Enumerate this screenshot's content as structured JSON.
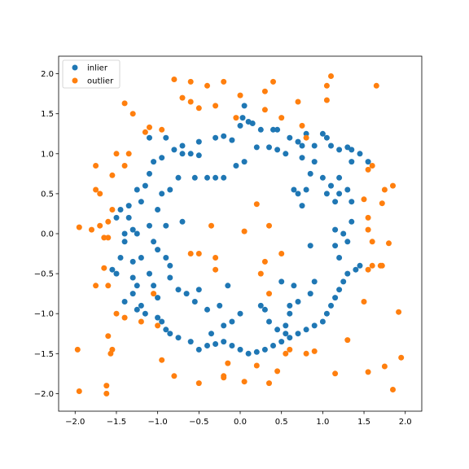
{
  "chart_data": {
    "type": "scatter",
    "title": "",
    "xlabel": "",
    "ylabel": "",
    "xlim": [
      -2.2,
      2.2
    ],
    "ylim": [
      -2.22,
      2.22
    ],
    "xticks": [
      -2.0,
      -1.5,
      -1.0,
      -0.5,
      0.0,
      0.5,
      1.0,
      1.5,
      2.0
    ],
    "yticks": [
      -2.0,
      -1.5,
      -1.0,
      -0.5,
      0.0,
      0.5,
      1.0,
      1.5,
      2.0
    ],
    "xtick_labels": [
      "−2.0",
      "−1.5",
      "−1.0",
      "−0.5",
      "0.0",
      "0.5",
      "1.0",
      "1.5",
      "2.0"
    ],
    "ytick_labels": [
      "−2.0",
      "−1.5",
      "−1.0",
      "−0.5",
      "0.0",
      "0.5",
      "1.0",
      "1.5",
      "2.0"
    ],
    "grid": false,
    "legend_position": "top-left",
    "series": [
      {
        "name": "inlier",
        "color": "#1f77b4",
        "points": [
          [
            -1.1,
            1.2
          ],
          [
            -0.9,
            1.2
          ],
          [
            -0.7,
            1.1
          ],
          [
            -0.5,
            1.15
          ],
          [
            -0.3,
            1.2
          ],
          [
            -0.2,
            1.22
          ],
          [
            -0.1,
            1.17
          ],
          [
            0.0,
            1.35
          ],
          [
            0.03,
            1.45
          ],
          [
            0.05,
            1.6
          ],
          [
            0.1,
            1.4
          ],
          [
            0.15,
            1.38
          ],
          [
            0.25,
            1.3
          ],
          [
            0.4,
            1.3
          ],
          [
            0.45,
            1.3
          ],
          [
            0.6,
            1.2
          ],
          [
            0.7,
            1.15
          ],
          [
            0.75,
            1.1
          ],
          [
            0.8,
            1.25
          ],
          [
            0.9,
            1.1
          ],
          [
            1.0,
            1.25
          ],
          [
            1.05,
            1.2
          ],
          [
            1.1,
            1.1
          ],
          [
            1.2,
            1.05
          ],
          [
            1.3,
            1.08
          ],
          [
            1.35,
            1.05
          ],
          [
            1.45,
            1.0
          ],
          [
            1.55,
            0.9
          ],
          [
            1.35,
            0.9
          ],
          [
            1.2,
            0.7
          ],
          [
            1.3,
            0.55
          ],
          [
            1.35,
            0.4
          ],
          [
            1.1,
            0.6
          ],
          [
            1.15,
            0.4
          ],
          [
            1.2,
            0.5
          ],
          [
            1.05,
            0.5
          ],
          [
            1.0,
            0.7
          ],
          [
            0.9,
            0.9
          ],
          [
            0.85,
            0.75
          ],
          [
            0.8,
            0.55
          ],
          [
            0.65,
            0.55
          ],
          [
            0.7,
            0.5
          ],
          [
            0.75,
            0.35
          ],
          [
            0.75,
            0.95
          ],
          [
            0.55,
            1.0
          ],
          [
            0.45,
            1.05
          ],
          [
            0.35,
            1.08
          ],
          [
            0.2,
            1.08
          ],
          [
            -0.5,
            0.98
          ],
          [
            -0.6,
            1.0
          ],
          [
            -0.7,
            1.0
          ],
          [
            -0.8,
            1.05
          ],
          [
            -0.95,
            0.95
          ],
          [
            -1.05,
            0.9
          ],
          [
            -1.1,
            0.75
          ],
          [
            -1.15,
            0.6
          ],
          [
            -1.25,
            0.55
          ],
          [
            -1.2,
            0.4
          ],
          [
            -1.35,
            0.35
          ],
          [
            -1.45,
            0.3
          ],
          [
            -1.5,
            0.2
          ],
          [
            -1.35,
            0.2
          ],
          [
            -1.3,
            0.05
          ],
          [
            -1.4,
            -0.1
          ],
          [
            -1.45,
            -0.3
          ],
          [
            -1.55,
            -0.45
          ],
          [
            -1.5,
            -0.5
          ],
          [
            -1.3,
            -0.55
          ],
          [
            -1.25,
            -0.65
          ],
          [
            -1.3,
            -0.75
          ],
          [
            -1.4,
            -0.85
          ],
          [
            -1.25,
            -0.95
          ],
          [
            -1.2,
            -0.9
          ],
          [
            -1.15,
            -1.0
          ],
          [
            -1.0,
            -1.05
          ],
          [
            -0.95,
            -1.1
          ],
          [
            -0.9,
            -1.2
          ],
          [
            -0.85,
            -1.25
          ],
          [
            -0.75,
            -1.3
          ],
          [
            -0.6,
            -1.35
          ],
          [
            -0.5,
            -1.45
          ],
          [
            -0.4,
            -1.4
          ],
          [
            -0.3,
            -1.38
          ],
          [
            -0.2,
            -1.35
          ],
          [
            -0.1,
            -1.4
          ],
          [
            0.0,
            -1.45
          ],
          [
            0.1,
            -1.5
          ],
          [
            0.2,
            -1.48
          ],
          [
            0.3,
            -1.45
          ],
          [
            0.4,
            -1.4
          ],
          [
            0.5,
            -1.35
          ],
          [
            0.6,
            -1.3
          ],
          [
            0.7,
            -1.25
          ],
          [
            0.8,
            -1.2
          ],
          [
            0.9,
            -1.15
          ],
          [
            1.0,
            -1.1
          ],
          [
            1.05,
            -1.0
          ],
          [
            1.1,
            -0.9
          ],
          [
            1.15,
            -0.8
          ],
          [
            1.2,
            -0.7
          ],
          [
            1.25,
            -0.6
          ],
          [
            1.3,
            -0.5
          ],
          [
            1.4,
            -0.45
          ],
          [
            1.45,
            -0.4
          ],
          [
            1.2,
            -0.3
          ],
          [
            1.15,
            -0.15
          ],
          [
            1.15,
            0.05
          ],
          [
            1.25,
            0.0
          ],
          [
            1.3,
            -0.1
          ],
          [
            1.35,
            0.15
          ],
          [
            0.85,
            -0.15
          ],
          [
            0.9,
            -0.6
          ],
          [
            0.85,
            -0.75
          ],
          [
            0.7,
            -0.85
          ],
          [
            0.6,
            -0.9
          ],
          [
            0.6,
            -1.0
          ],
          [
            0.55,
            -1.15
          ],
          [
            0.45,
            -1.2
          ],
          [
            0.35,
            -1.1
          ],
          [
            0.3,
            -0.95
          ],
          [
            0.25,
            -0.9
          ],
          [
            0.0,
            -1.0
          ],
          [
            -0.1,
            -1.1
          ],
          [
            -0.2,
            -1.15
          ],
          [
            -0.25,
            -0.9
          ],
          [
            -0.4,
            -0.95
          ],
          [
            -0.55,
            -0.85
          ],
          [
            -0.65,
            -0.75
          ],
          [
            -0.75,
            -0.7
          ],
          [
            -0.85,
            -0.55
          ],
          [
            -0.85,
            -0.4
          ],
          [
            -0.9,
            -0.3
          ],
          [
            -1.0,
            -0.2
          ],
          [
            -1.05,
            -0.1
          ],
          [
            -1.1,
            0.1
          ],
          [
            -1.0,
            0.3
          ],
          [
            -0.95,
            0.5
          ],
          [
            -0.85,
            0.55
          ],
          [
            -0.75,
            0.7
          ],
          [
            -0.55,
            0.7
          ],
          [
            -0.4,
            0.7
          ],
          [
            -0.3,
            0.7
          ],
          [
            -0.2,
            0.7
          ],
          [
            -0.05,
            0.85
          ],
          [
            0.05,
            0.9
          ],
          [
            -1.2,
            -0.3
          ],
          [
            -1.1,
            -0.5
          ],
          [
            -1.05,
            -0.65
          ],
          [
            -1.0,
            -0.8
          ],
          [
            -1.3,
            -0.35
          ],
          [
            -0.7,
            0.15
          ],
          [
            -0.9,
            0.1
          ],
          [
            -1.25,
            0.0
          ],
          [
            -1.4,
            0.0
          ],
          [
            -0.5,
            -0.7
          ],
          [
            -0.15,
            -0.65
          ],
          [
            0.5,
            -0.6
          ],
          [
            0.65,
            -0.65
          ],
          [
            0.55,
            -1.25
          ],
          [
            -0.35,
            -1.25
          ]
        ]
      },
      {
        "name": "outlier",
        "color": "#ff7f0e",
        "points": [
          [
            -0.8,
            1.93
          ],
          [
            -0.6,
            1.9
          ],
          [
            -0.4,
            1.85
          ],
          [
            -0.2,
            1.9
          ],
          [
            0.0,
            1.73
          ],
          [
            0.3,
            1.78
          ],
          [
            0.4,
            1.9
          ],
          [
            1.05,
            1.85
          ],
          [
            1.1,
            1.97
          ],
          [
            1.05,
            1.67
          ],
          [
            1.65,
            1.85
          ],
          [
            0.7,
            1.65
          ],
          [
            0.3,
            1.55
          ],
          [
            0.5,
            1.45
          ],
          [
            0.75,
            1.35
          ],
          [
            -0.05,
            1.45
          ],
          [
            -0.3,
            1.6
          ],
          [
            -0.5,
            1.57
          ],
          [
            -0.6,
            1.65
          ],
          [
            -0.7,
            1.7
          ],
          [
            -1.1,
            1.33
          ],
          [
            -1.15,
            1.27
          ],
          [
            -0.95,
            1.3
          ],
          [
            -1.3,
            1.5
          ],
          [
            -1.4,
            1.63
          ],
          [
            -1.5,
            1.0
          ],
          [
            -1.35,
            1.0
          ],
          [
            -1.4,
            0.85
          ],
          [
            -1.55,
            0.73
          ],
          [
            -1.75,
            0.85
          ],
          [
            -1.75,
            0.55
          ],
          [
            -1.7,
            0.5
          ],
          [
            -1.55,
            0.3
          ],
          [
            -1.6,
            0.15
          ],
          [
            -1.7,
            0.1
          ],
          [
            -1.95,
            0.08
          ],
          [
            -1.8,
            0.05
          ],
          [
            -1.65,
            -0.05
          ],
          [
            -1.6,
            -0.05
          ],
          [
            -1.65,
            -0.43
          ],
          [
            -1.75,
            -0.65
          ],
          [
            -1.6,
            -0.65
          ],
          [
            -1.5,
            -1.0
          ],
          [
            -1.4,
            -1.05
          ],
          [
            -1.2,
            -1.1
          ],
          [
            -1.0,
            -1.15
          ],
          [
            -1.05,
            -0.75
          ],
          [
            -0.95,
            -1.58
          ],
          [
            -1.55,
            -1.45
          ],
          [
            -1.6,
            -1.28
          ],
          [
            -1.57,
            -1.5
          ],
          [
            -1.97,
            -1.45
          ],
          [
            -1.95,
            -1.97
          ],
          [
            -1.62,
            -1.9
          ],
          [
            -1.62,
            -2.0
          ],
          [
            -0.8,
            -1.78
          ],
          [
            -0.5,
            -1.87
          ],
          [
            -0.2,
            -1.78
          ],
          [
            -0.15,
            -1.62
          ],
          [
            -0.2,
            -1.8
          ],
          [
            0.05,
            -1.85
          ],
          [
            0.2,
            -1.65
          ],
          [
            0.35,
            -1.87
          ],
          [
            0.45,
            -1.72
          ],
          [
            0.55,
            -1.5
          ],
          [
            0.6,
            -1.45
          ],
          [
            0.8,
            -1.5
          ],
          [
            0.9,
            -1.47
          ],
          [
            1.15,
            -1.75
          ],
          [
            1.3,
            -1.33
          ],
          [
            1.55,
            -1.73
          ],
          [
            1.75,
            -1.66
          ],
          [
            1.85,
            -1.95
          ],
          [
            1.95,
            -1.55
          ],
          [
            1.92,
            -0.98
          ],
          [
            1.5,
            -0.85
          ],
          [
            1.55,
            -0.45
          ],
          [
            1.6,
            -0.4
          ],
          [
            1.7,
            -0.4
          ],
          [
            1.72,
            -0.4
          ],
          [
            1.8,
            -0.12
          ],
          [
            1.6,
            -0.1
          ],
          [
            1.55,
            0.05
          ],
          [
            1.55,
            0.2
          ],
          [
            1.5,
            0.43
          ],
          [
            1.72,
            0.38
          ],
          [
            1.75,
            0.55
          ],
          [
            1.85,
            0.6
          ],
          [
            1.6,
            0.85
          ],
          [
            1.55,
            0.8
          ],
          [
            0.8,
            1.2
          ],
          [
            0.35,
            0.1
          ],
          [
            0.05,
            0.03
          ],
          [
            0.2,
            0.37
          ],
          [
            -0.35,
            0.1
          ],
          [
            -0.6,
            -0.25
          ],
          [
            -0.5,
            -0.25
          ],
          [
            -0.3,
            -0.3
          ],
          [
            -0.3,
            -0.45
          ],
          [
            0.3,
            -0.35
          ],
          [
            0.25,
            -0.5
          ],
          [
            0.5,
            -0.25
          ],
          [
            0.35,
            -0.75
          ]
        ]
      }
    ]
  }
}
